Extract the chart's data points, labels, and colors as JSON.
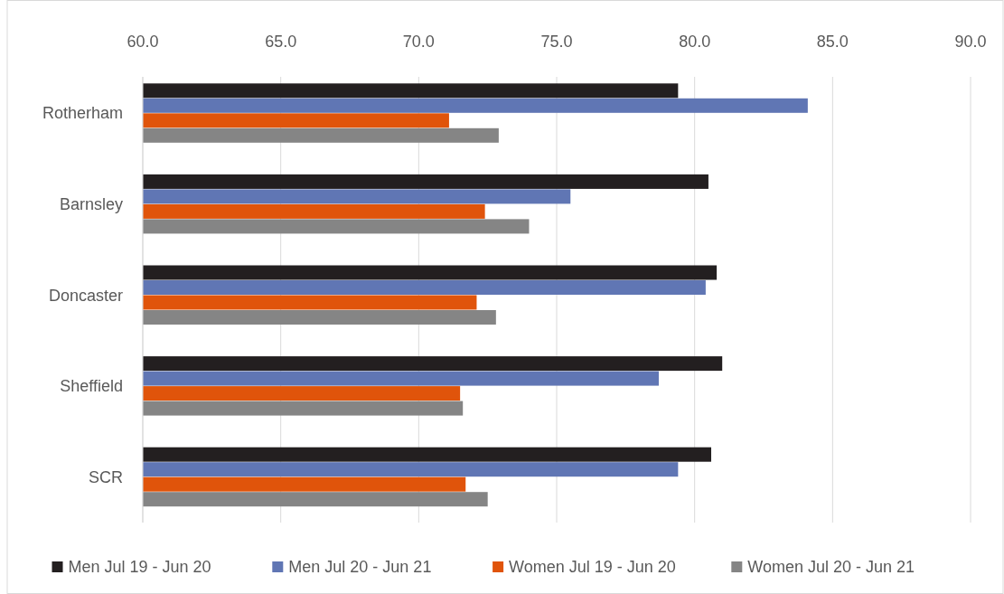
{
  "chart_data": {
    "type": "bar",
    "orientation": "horizontal",
    "categories": [
      "Rotherham",
      "Barnsley",
      "Doncaster",
      "Sheffield",
      "SCR"
    ],
    "series": [
      {
        "name": "Men Jul 19 - Jun 20",
        "color": "#231f20",
        "values": [
          79.4,
          80.5,
          80.8,
          81.0,
          80.6
        ]
      },
      {
        "name": "Men Jul 20 - Jun 21",
        "color": "#6076b4",
        "values": [
          84.1,
          75.5,
          80.4,
          78.7,
          79.4
        ]
      },
      {
        "name": "Women Jul 19 - Jun 20",
        "color": "#e0540b",
        "values": [
          71.1,
          72.4,
          72.1,
          71.5,
          71.7
        ]
      },
      {
        "name": "Women Jul 20 - Jun 21",
        "color": "#858585",
        "values": [
          72.9,
          74.0,
          72.8,
          71.6,
          72.5
        ]
      }
    ],
    "xlim": [
      60,
      90
    ],
    "xticks": [
      {
        "value": 60,
        "label": "60.0"
      },
      {
        "value": 65,
        "label": "65.0"
      },
      {
        "value": 70,
        "label": "70.0"
      },
      {
        "value": 75,
        "label": "75.0"
      },
      {
        "value": 80,
        "label": "80.0"
      },
      {
        "value": 85,
        "label": "85.0"
      },
      {
        "value": 90,
        "label": "90.0"
      }
    ],
    "grid": "x",
    "legend": "bottom"
  }
}
